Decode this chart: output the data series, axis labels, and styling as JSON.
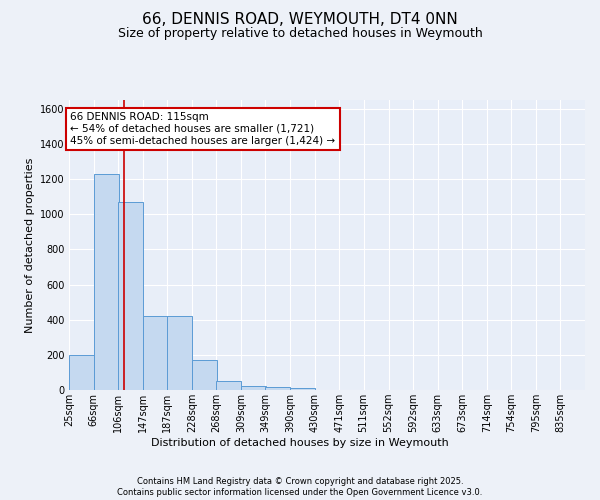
{
  "title1": "66, DENNIS ROAD, WEYMOUTH, DT4 0NN",
  "title2": "Size of property relative to detached houses in Weymouth",
  "xlabel": "Distribution of detached houses by size in Weymouth",
  "ylabel": "Number of detached properties",
  "bins": [
    25,
    66,
    106,
    147,
    187,
    228,
    268,
    309,
    349,
    390,
    430,
    471,
    511,
    552,
    592,
    633,
    673,
    714,
    754,
    795,
    835
  ],
  "bin_labels": [
    "25sqm",
    "66sqm",
    "106sqm",
    "147sqm",
    "187sqm",
    "228sqm",
    "268sqm",
    "309sqm",
    "349sqm",
    "390sqm",
    "430sqm",
    "471sqm",
    "511sqm",
    "552sqm",
    "592sqm",
    "633sqm",
    "673sqm",
    "714sqm",
    "754sqm",
    "795sqm",
    "835sqm"
  ],
  "bar_heights": [
    200,
    1230,
    1070,
    420,
    420,
    170,
    50,
    25,
    15,
    10,
    0,
    0,
    0,
    0,
    0,
    0,
    0,
    0,
    0,
    0
  ],
  "bar_color": "#c5d9f0",
  "bar_edge_color": "#5b9bd5",
  "vline_x": 115,
  "vline_color": "#cc0000",
  "ylim": [
    0,
    1650
  ],
  "yticks": [
    0,
    200,
    400,
    600,
    800,
    1000,
    1200,
    1400,
    1600
  ],
  "annotation_text": "66 DENNIS ROAD: 115sqm\n← 54% of detached houses are smaller (1,721)\n45% of semi-detached houses are larger (1,424) →",
  "annotation_box_color": "#ffffff",
  "annotation_box_edge_color": "#cc0000",
  "bg_color": "#e8eef8",
  "grid_color": "#ffffff",
  "footer1": "Contains HM Land Registry data © Crown copyright and database right 2025.",
  "footer2": "Contains public sector information licensed under the Open Government Licence v3.0.",
  "title1_fontsize": 11,
  "title2_fontsize": 9,
  "axis_label_fontsize": 8,
  "tick_fontsize": 7,
  "annotation_fontsize": 7.5
}
